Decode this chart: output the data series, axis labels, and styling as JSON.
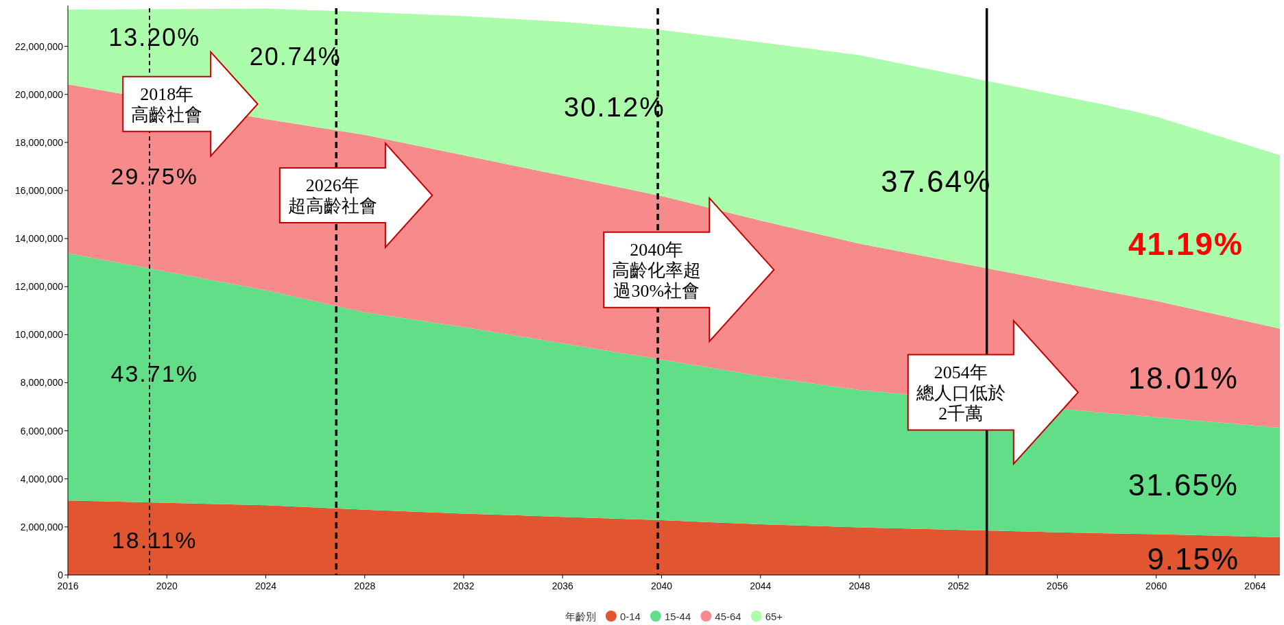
{
  "chart_data": {
    "type": "area",
    "stacked": true,
    "legend_title": "年齡別",
    "legend": "bottom",
    "grid": false,
    "x": [
      2016,
      2024,
      2028,
      2032,
      2036,
      2040,
      2044,
      2048,
      2058,
      2060,
      2065
    ],
    "series": [
      {
        "name": "0-14",
        "color": "#e15530",
        "values": [
          3100000,
          2900000,
          2720000,
          2550000,
          2420000,
          2280000,
          2110000,
          1980000,
          1730000,
          1700000,
          1570000
        ]
      },
      {
        "name": "15-44",
        "color": "#62de88",
        "values": [
          10290000,
          8950000,
          8210000,
          7770000,
          7220000,
          6680000,
          6170000,
          5720000,
          5010000,
          4870000,
          4560000
        ]
      },
      {
        "name": "45-64",
        "color": "#f78b8b",
        "values": [
          7030000,
          7120000,
          7390000,
          7150000,
          6980000,
          6810000,
          6470000,
          6090000,
          5060000,
          4840000,
          4120000
        ]
      },
      {
        "name": "65+",
        "color": "#abfdab",
        "values": [
          3110000,
          4600000,
          5110000,
          5790000,
          6400000,
          6910000,
          7420000,
          7840000,
          7750000,
          7660000,
          7220000
        ]
      }
    ],
    "xlim": [
      2016,
      2065
    ],
    "xticks": [
      2016,
      2020,
      2024,
      2028,
      2032,
      2036,
      2040,
      2044,
      2048,
      2052,
      2056,
      2060,
      2064
    ],
    "ylim": [
      0,
      23700000
    ],
    "yticks": [
      {
        "value": 0,
        "label": "0"
      },
      {
        "value": 2000000,
        "label": "2,000,000"
      },
      {
        "value": 4000000,
        "label": "4,000,000"
      },
      {
        "value": 6000000,
        "label": "6,000,000"
      },
      {
        "value": 8000000,
        "label": "8,000,000"
      },
      {
        "value": 10000000,
        "label": "10,000,000"
      },
      {
        "value": 12000000,
        "label": "12,000,000"
      },
      {
        "value": 14000000,
        "label": "14,000,000"
      },
      {
        "value": 16000000,
        "label": "16,000,000"
      },
      {
        "value": 18000000,
        "label": "18,000,000"
      },
      {
        "value": 20000000,
        "label": "20,000,000"
      },
      {
        "value": 22000000,
        "label": "22,000,000"
      }
    ],
    "ref_lines": [
      {
        "axis": "x",
        "value": 2019.3,
        "color": "#000000",
        "line_style": "dashed"
      },
      {
        "axis": "x",
        "value": 2026.85,
        "color": "#000000",
        "line_style": "dashed"
      },
      {
        "axis": "x",
        "value": 2039.85,
        "color": "#000000",
        "line_style": "dashed"
      },
      {
        "axis": "x",
        "value": 2053.15,
        "color": "#000000",
        "line_style": "solid"
      }
    ],
    "annotations": [
      "13.20%",
      "20.74%",
      "30.12%",
      "37.64%",
      "41.19%",
      "29.75%",
      "18.01%",
      "43.71%",
      "31.65%",
      "18.11%",
      "9.15%",
      "2018年高齡社會",
      "2026年超高齡社會",
      "2040年高齡化率超過30%社會",
      "2054年總人口低於2千萬"
    ]
  }
}
